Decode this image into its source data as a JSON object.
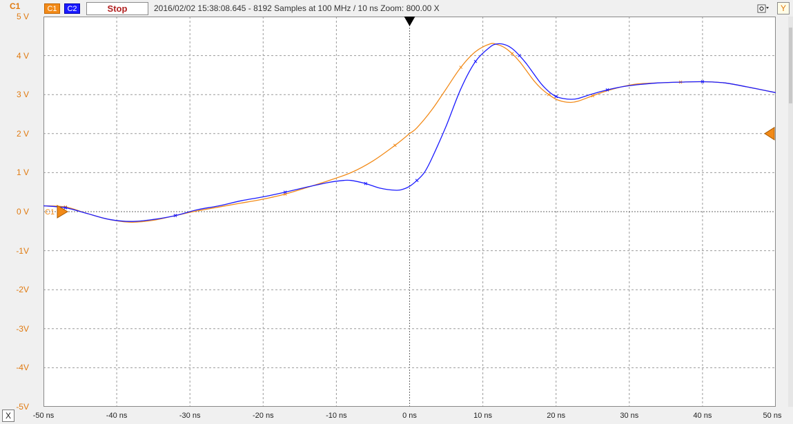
{
  "toolbar": {
    "c1_label": "C1",
    "c2_label": "C2",
    "stop_label": "Stop",
    "status_text": "2016/02/02  15:38:08.645 - 8192 Samples at 100 MHz / 10 ns  Zoom: 800.00 X",
    "settings_icon": "gear-menu-icon",
    "y_label": "Y"
  },
  "y_axis": {
    "title": "C1",
    "ticks": [
      "5 V",
      "4 V",
      "3 V",
      "2 V",
      "1 V",
      "0 V",
      "-1V",
      "-2V",
      "-3V",
      "-4V",
      "-5V"
    ]
  },
  "x_axis": {
    "button_label": "X",
    "ticks": [
      "-50 ns",
      "-40 ns",
      "-30 ns",
      "-20 ns",
      "-10 ns",
      "0 ns",
      "10 ns",
      "20 ns",
      "30 ns",
      "40 ns",
      "50 ns"
    ]
  },
  "markers": {
    "c1_ground_label": "C1",
    "c1_ground_level_v": 0,
    "c1_trigger_level_v": 2,
    "trigger_time_ns": 0
  },
  "colors": {
    "c1": "#f28a18",
    "c2": "#1a1aff",
    "axis_labels": "#e07a10",
    "grid": "#999999",
    "background": "#ffffff"
  },
  "chart_data": {
    "type": "line",
    "title": "",
    "xlabel": "",
    "ylabel": "",
    "xlim": [
      -50,
      50
    ],
    "ylim": [
      -5,
      5
    ],
    "grid": true,
    "series": [
      {
        "name": "C1",
        "color": "#f28a18",
        "x": [
          -50,
          -47,
          -44,
          -41,
          -38,
          -35,
          -32,
          -29,
          -26,
          -23,
          -20,
          -17,
          -14,
          -11,
          -8,
          -5,
          -2,
          0,
          1,
          3,
          5,
          7,
          9,
          11,
          12,
          13,
          14,
          15,
          16,
          17,
          18,
          19,
          20,
          21,
          22,
          23,
          25,
          27,
          29,
          31,
          34,
          37,
          40,
          43,
          46,
          50
        ],
        "y": [
          0.15,
          0.12,
          -0.05,
          -0.2,
          -0.27,
          -0.22,
          -0.1,
          0.02,
          0.12,
          0.22,
          0.32,
          0.45,
          0.62,
          0.8,
          1.0,
          1.3,
          1.7,
          2.0,
          2.15,
          2.6,
          3.15,
          3.7,
          4.1,
          4.3,
          4.28,
          4.2,
          4.05,
          3.85,
          3.6,
          3.35,
          3.15,
          3.0,
          2.88,
          2.82,
          2.8,
          2.83,
          2.97,
          3.1,
          3.2,
          3.27,
          3.3,
          3.32,
          3.33,
          3.3,
          3.2,
          3.05
        ]
      },
      {
        "name": "C2",
        "color": "#1a1aff",
        "x": [
          -50,
          -47,
          -44,
          -41,
          -38,
          -35,
          -32,
          -29,
          -26,
          -23,
          -20,
          -17,
          -14,
          -11,
          -9,
          -8,
          -6,
          -4,
          -2,
          -1,
          0,
          1,
          2,
          3,
          5,
          7,
          9,
          11,
          12,
          13,
          14,
          15,
          16,
          17,
          18,
          19,
          20,
          21,
          22,
          23,
          25,
          27,
          29,
          31,
          34,
          37,
          40,
          43,
          46,
          50
        ],
        "y": [
          0.15,
          0.1,
          -0.05,
          -0.2,
          -0.25,
          -0.2,
          -0.1,
          0.05,
          0.15,
          0.28,
          0.38,
          0.5,
          0.63,
          0.75,
          0.8,
          0.8,
          0.72,
          0.6,
          0.55,
          0.57,
          0.65,
          0.8,
          1.0,
          1.35,
          2.2,
          3.15,
          3.85,
          4.22,
          4.3,
          4.28,
          4.18,
          4.0,
          3.78,
          3.52,
          3.27,
          3.08,
          2.95,
          2.9,
          2.88,
          2.9,
          3.02,
          3.12,
          3.2,
          3.25,
          3.3,
          3.32,
          3.33,
          3.3,
          3.2,
          3.05
        ]
      }
    ]
  }
}
